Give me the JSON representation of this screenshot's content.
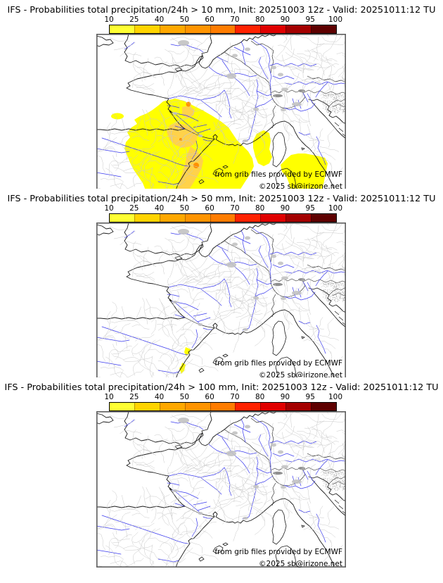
{
  "model_run": {
    "model": "IFS",
    "variable": "Probabilities total precipitation/24h",
    "init": "20251003 12z",
    "valid": "20251011:12 TU"
  },
  "panels": [
    {
      "threshold": "10 mm",
      "title": "IFS - Probabilities total precipitation/24h > 10 mm, Init: 20251003 12z - Valid: 20251011:12 TU",
      "overlay": "p10"
    },
    {
      "threshold": "50 mm",
      "title": "IFS - Probabilities total precipitation/24h > 50 mm, Init: 20251003 12z - Valid: 20251011:12 TU",
      "overlay": "p50"
    },
    {
      "threshold": "100 mm",
      "title": "IFS - Probabilities total precipitation/24h > 100 mm, Init: 20251003 12z - Valid: 20251011:12 TU",
      "overlay": "none"
    }
  ],
  "colorbar": {
    "tick_labels": [
      "10",
      "25",
      "40",
      "50",
      "60",
      "70",
      "80",
      "90",
      "95",
      "100"
    ],
    "segment_colors": [
      "#ffff33",
      "#ffd400",
      "#ffa800",
      "#ff9400",
      "#ff7c00",
      "#ff2200",
      "#e00000",
      "#a40000",
      "#5e0000"
    ]
  },
  "map": {
    "attribution_line1": "from grib files provided by ECMWF",
    "attribution_line2": "©2025 sb@irizone.net",
    "colors": {
      "river": "#3a3aee",
      "coastline": "#1c1c1c",
      "admin": "#c9c9c9",
      "prob_low": "#ffff00",
      "prob_mid": "#ffd24a",
      "prob_high": "#ff9000"
    }
  }
}
